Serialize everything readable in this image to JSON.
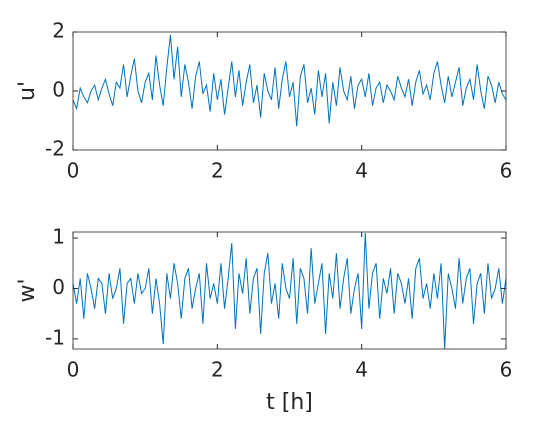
{
  "chart_data": [
    {
      "type": "line",
      "ylabel": "u'",
      "x": [
        0,
        0.05,
        0.1,
        0.15,
        0.2,
        0.25,
        0.3,
        0.35,
        0.4,
        0.45,
        0.5,
        0.55,
        0.6,
        0.65,
        0.7,
        0.75,
        0.8,
        0.85,
        0.9,
        0.95,
        1,
        1.05,
        1.1,
        1.15,
        1.2,
        1.25,
        1.3,
        1.35,
        1.4,
        1.45,
        1.5,
        1.55,
        1.6,
        1.65,
        1.7,
        1.75,
        1.8,
        1.85,
        1.9,
        1.95,
        2,
        2.05,
        2.1,
        2.15,
        2.2,
        2.25,
        2.3,
        2.35,
        2.4,
        2.45,
        2.5,
        2.55,
        2.6,
        2.65,
        2.7,
        2.75,
        2.8,
        2.85,
        2.9,
        2.95,
        3,
        3.05,
        3.1,
        3.15,
        3.2,
        3.25,
        3.3,
        3.35,
        3.4,
        3.45,
        3.5,
        3.55,
        3.6,
        3.65,
        3.7,
        3.75,
        3.8,
        3.85,
        3.9,
        3.95,
        4,
        4.05,
        4.1,
        4.15,
        4.2,
        4.25,
        4.3,
        4.35,
        4.4,
        4.45,
        4.5,
        4.55,
        4.6,
        4.65,
        4.7,
        4.75,
        4.8,
        4.85,
        4.9,
        4.95,
        5,
        5.05,
        5.1,
        5.15,
        5.2,
        5.25,
        5.3,
        5.35,
        5.4,
        5.45,
        5.5,
        5.55,
        5.6,
        5.65,
        5.7,
        5.75,
        5.8,
        5.85,
        5.9,
        5.95,
        6
      ],
      "series": [
        {
          "color": "#0072bd",
          "values": [
            -0.3,
            -0.6,
            0.1,
            -0.2,
            -0.4,
            0.0,
            0.2,
            -0.3,
            0.1,
            0.4,
            -0.1,
            -0.5,
            0.3,
            0.1,
            0.9,
            -0.2,
            0.5,
            1.1,
            0.0,
            -0.4,
            0.3,
            0.6,
            -0.3,
            1.2,
            0.2,
            -0.5,
            0.8,
            1.9,
            0.4,
            1.5,
            -0.2,
            0.9,
            0.3,
            -0.6,
            0.5,
            1.0,
            -0.1,
            0.2,
            -0.7,
            0.6,
            -0.3,
            0.4,
            -0.8,
            0.1,
            1.0,
            -0.2,
            0.7,
            -0.5,
            0.3,
            0.9,
            -0.4,
            0.2,
            -0.9,
            0.6,
            0.0,
            -0.3,
            0.8,
            -0.6,
            0.4,
            1.0,
            -0.2,
            0.3,
            -1.2,
            0.5,
            0.9,
            -0.4,
            0.1,
            -0.8,
            0.7,
            -0.2,
            0.6,
            -1.1,
            0.3,
            -0.5,
            0.8,
            0.0,
            -0.3,
            0.5,
            -0.6,
            0.2,
            0.4,
            -0.2,
            0.6,
            -0.5,
            0.1,
            0.3,
            -0.4,
            0.2,
            0.0,
            -0.3,
            0.5,
            0.1,
            -0.2,
            0.4,
            -0.5,
            0.3,
            0.7,
            -0.1,
            0.2,
            -0.3,
            0.6,
            1.0,
            0.2,
            -0.4,
            0.5,
            -0.2,
            0.3,
            0.8,
            -0.5,
            0.1,
            0.4,
            -0.3,
            0.9,
            0.0,
            -0.6,
            0.5,
            0.2,
            -0.4,
            0.3,
            -0.1,
            -0.3
          ]
        }
      ],
      "xlim": [
        0,
        6
      ],
      "xticks": [
        0,
        2,
        4,
        6
      ],
      "ylim": [
        -2,
        2
      ],
      "yticks": [
        -2,
        0,
        2
      ]
    },
    {
      "type": "line",
      "ylabel": "w'",
      "xlabel": "t [h]",
      "x": [
        0,
        0.05,
        0.1,
        0.15,
        0.2,
        0.25,
        0.3,
        0.35,
        0.4,
        0.45,
        0.5,
        0.55,
        0.6,
        0.65,
        0.7,
        0.75,
        0.8,
        0.85,
        0.9,
        0.95,
        1,
        1.05,
        1.1,
        1.15,
        1.2,
        1.25,
        1.3,
        1.35,
        1.4,
        1.45,
        1.5,
        1.55,
        1.6,
        1.65,
        1.7,
        1.75,
        1.8,
        1.85,
        1.9,
        1.95,
        2,
        2.05,
        2.1,
        2.15,
        2.2,
        2.25,
        2.3,
        2.35,
        2.4,
        2.45,
        2.5,
        2.55,
        2.6,
        2.65,
        2.7,
        2.75,
        2.8,
        2.85,
        2.9,
        2.95,
        3,
        3.05,
        3.1,
        3.15,
        3.2,
        3.25,
        3.3,
        3.35,
        3.4,
        3.45,
        3.5,
        3.55,
        3.6,
        3.65,
        3.7,
        3.75,
        3.8,
        3.85,
        3.9,
        3.95,
        4,
        4.05,
        4.1,
        4.15,
        4.2,
        4.25,
        4.3,
        4.35,
        4.4,
        4.45,
        4.5,
        4.55,
        4.6,
        4.65,
        4.7,
        4.75,
        4.8,
        4.85,
        4.9,
        4.95,
        5,
        5.05,
        5.1,
        5.15,
        5.2,
        5.25,
        5.3,
        5.35,
        5.4,
        5.45,
        5.5,
        5.55,
        5.6,
        5.65,
        5.7,
        5.75,
        5.8,
        5.85,
        5.9,
        5.95,
        6
      ],
      "series": [
        {
          "color": "#0072bd",
          "values": [
            0.1,
            -0.3,
            0.2,
            -0.6,
            0.3,
            0.0,
            -0.4,
            0.2,
            0.1,
            -0.5,
            0.3,
            -0.2,
            0.0,
            0.4,
            -0.7,
            0.1,
            0.2,
            -0.3,
            0.3,
            -0.1,
            0.0,
            0.4,
            -0.5,
            0.2,
            -0.3,
            -1.1,
            0.3,
            -0.2,
            0.5,
            0.1,
            -0.6,
            0.2,
            0.4,
            -0.4,
            0.0,
            0.3,
            -0.7,
            0.5,
            -0.2,
            0.1,
            -0.3,
            0.5,
            -0.4,
            0.2,
            0.9,
            -0.8,
            0.3,
            -0.1,
            0.6,
            -0.5,
            0.2,
            0.4,
            -0.9,
            0.3,
            0.7,
            -0.3,
            0.1,
            -0.6,
            0.5,
            0.0,
            -0.2,
            0.6,
            -0.7,
            0.4,
            0.2,
            -0.5,
            0.8,
            -0.3,
            0.1,
            0.5,
            -0.9,
            0.3,
            -0.2,
            0.7,
            -0.4,
            0.2,
            0.6,
            -0.5,
            0.0,
            0.3,
            -0.8,
            1.1,
            -0.4,
            0.3,
            0.5,
            -0.6,
            0.2,
            -0.1,
            0.4,
            -0.5,
            0.3,
            0.1,
            -0.3,
            0.2,
            -0.6,
            0.4,
            0.6,
            -0.2,
            0.1,
            -0.4,
            0.3,
            -0.2,
            0.5,
            -1.2,
            0.3,
            0.0,
            -0.4,
            0.6,
            -0.3,
            0.2,
            0.4,
            -0.7,
            0.1,
            0.3,
            -0.5,
            0.5,
            -0.2,
            0.0,
            0.4,
            -0.3,
            0.2
          ]
        }
      ],
      "xlim": [
        0,
        6
      ],
      "xticks": [
        0,
        2,
        4,
        6
      ],
      "ylim": [
        -1.2,
        1.12
      ],
      "yticks": [
        -1,
        0,
        1
      ]
    }
  ]
}
